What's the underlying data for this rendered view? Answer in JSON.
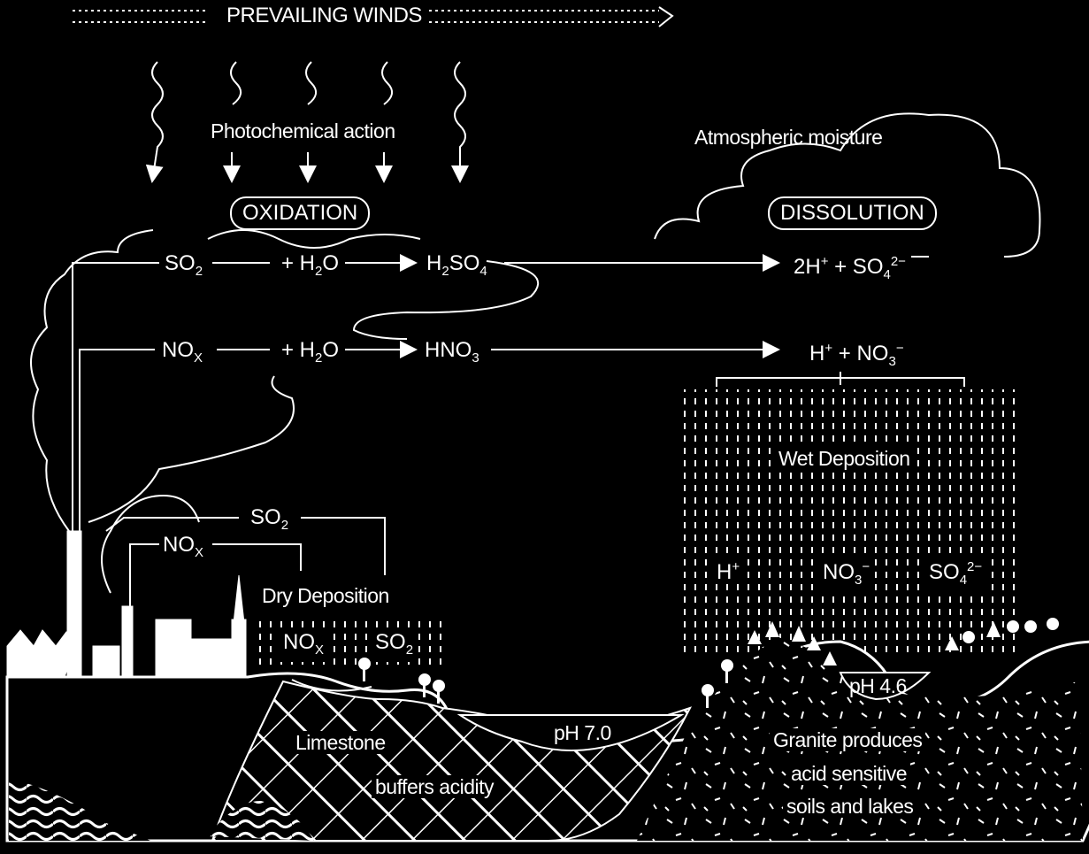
{
  "header": {
    "prevailing_winds": "PREVAILING WINDS"
  },
  "labels": {
    "photochemical": "Photochemical action",
    "oxidation": "OXIDATION",
    "atmospheric_moisture": "Atmospheric moisture",
    "dissolution": "DISSOLUTION",
    "wet_deposition": "Wet Deposition",
    "dry_deposition": "Dry Deposition",
    "ph_70": "pH 7.0",
    "ph_46": "pH 4.6",
    "limestone_1": "Limestone",
    "limestone_2": "buffers acidity",
    "granite_1": "Granite produces",
    "granite_2": "acid sensitive",
    "granite_3": "soils and lakes"
  },
  "chem": {
    "so2": [
      "SO",
      "2"
    ],
    "h2o": [
      "+ H",
      "2",
      "O"
    ],
    "h2so4": [
      "H",
      "2",
      "SO",
      "4"
    ],
    "diss_so4": [
      "2H",
      "+",
      " + SO",
      "4",
      "2−"
    ],
    "nox": [
      "NO",
      "X"
    ],
    "hno3": [
      "HNO",
      "3"
    ],
    "diss_no3": [
      "H",
      "+",
      " + NO",
      "3",
      "−"
    ],
    "wet_h": [
      "H",
      "+"
    ],
    "wet_no3": [
      "NO",
      "3",
      "−"
    ],
    "wet_so4": [
      "SO",
      "4",
      "2−"
    ]
  }
}
